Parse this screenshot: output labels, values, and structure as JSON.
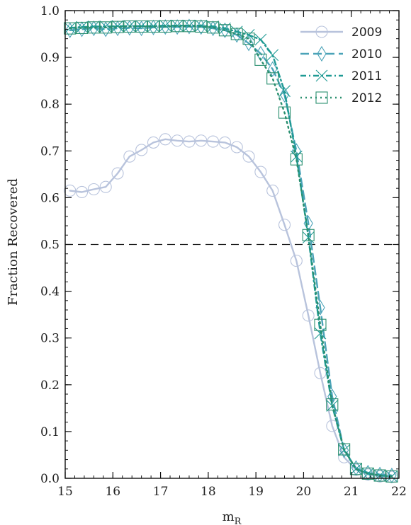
{
  "chart_data": {
    "type": "line",
    "title": "",
    "xlabel": "m",
    "xlabel_sub": "R",
    "ylabel": "Fraction Recovered",
    "xlim": [
      15,
      22
    ],
    "ylim": [
      0.0,
      1.0
    ],
    "xticks": [
      "15",
      "16",
      "17",
      "18",
      "19",
      "20",
      "21",
      "22"
    ],
    "yticks": [
      "0.0",
      "0.1",
      "0.2",
      "0.3",
      "0.4",
      "0.5",
      "0.6",
      "0.7",
      "0.8",
      "0.9",
      "1.0"
    ],
    "reference_line": {
      "y": 0.5,
      "style": "dashed"
    },
    "legend_position": "top-right",
    "x": [
      15.1,
      15.35,
      15.6,
      15.85,
      16.1,
      16.35,
      16.6,
      16.85,
      17.1,
      17.35,
      17.6,
      17.85,
      18.1,
      18.35,
      18.6,
      18.85,
      19.1,
      19.35,
      19.6,
      19.85,
      20.1,
      20.35,
      20.6,
      20.85,
      21.1,
      21.35,
      21.6,
      21.85
    ],
    "series": [
      {
        "name": "2009",
        "marker": "circle",
        "line": "solid",
        "color": "#b8c3dc",
        "values": [
          0.615,
          0.612,
          0.618,
          0.623,
          0.652,
          0.688,
          0.702,
          0.718,
          0.725,
          0.722,
          0.72,
          0.722,
          0.72,
          0.718,
          0.708,
          0.688,
          0.655,
          0.615,
          0.542,
          0.465,
          0.348,
          0.225,
          0.112,
          0.045,
          0.018,
          0.008,
          0.004,
          0.003
        ]
      },
      {
        "name": "2010",
        "marker": "diamond",
        "line": "dashed",
        "color": "#4ba3b8",
        "values": [
          0.958,
          0.96,
          0.962,
          0.96,
          0.962,
          0.963,
          0.962,
          0.964,
          0.965,
          0.965,
          0.966,
          0.965,
          0.962,
          0.958,
          0.948,
          0.93,
          0.908,
          0.875,
          0.82,
          0.7,
          0.545,
          0.365,
          0.175,
          0.06,
          0.022,
          0.012,
          0.008,
          0.006
        ]
      },
      {
        "name": "2011",
        "marker": "x",
        "line": "dashdot",
        "color": "#1f9a94",
        "values": [
          0.963,
          0.965,
          0.966,
          0.966,
          0.967,
          0.967,
          0.967,
          0.967,
          0.968,
          0.968,
          0.968,
          0.968,
          0.966,
          0.962,
          0.955,
          0.948,
          0.938,
          0.905,
          0.828,
          0.688,
          0.515,
          0.31,
          0.155,
          0.06,
          0.02,
          0.01,
          0.006,
          0.004
        ]
      },
      {
        "name": "2012",
        "marker": "square",
        "line": "dotted",
        "color": "#2a8f6f",
        "values": [
          0.962,
          0.963,
          0.964,
          0.964,
          0.965,
          0.966,
          0.966,
          0.966,
          0.966,
          0.967,
          0.967,
          0.966,
          0.964,
          0.958,
          0.95,
          0.94,
          0.895,
          0.855,
          0.782,
          0.682,
          0.52,
          0.328,
          0.158,
          0.062,
          0.02,
          0.01,
          0.006,
          0.004
        ]
      }
    ]
  }
}
